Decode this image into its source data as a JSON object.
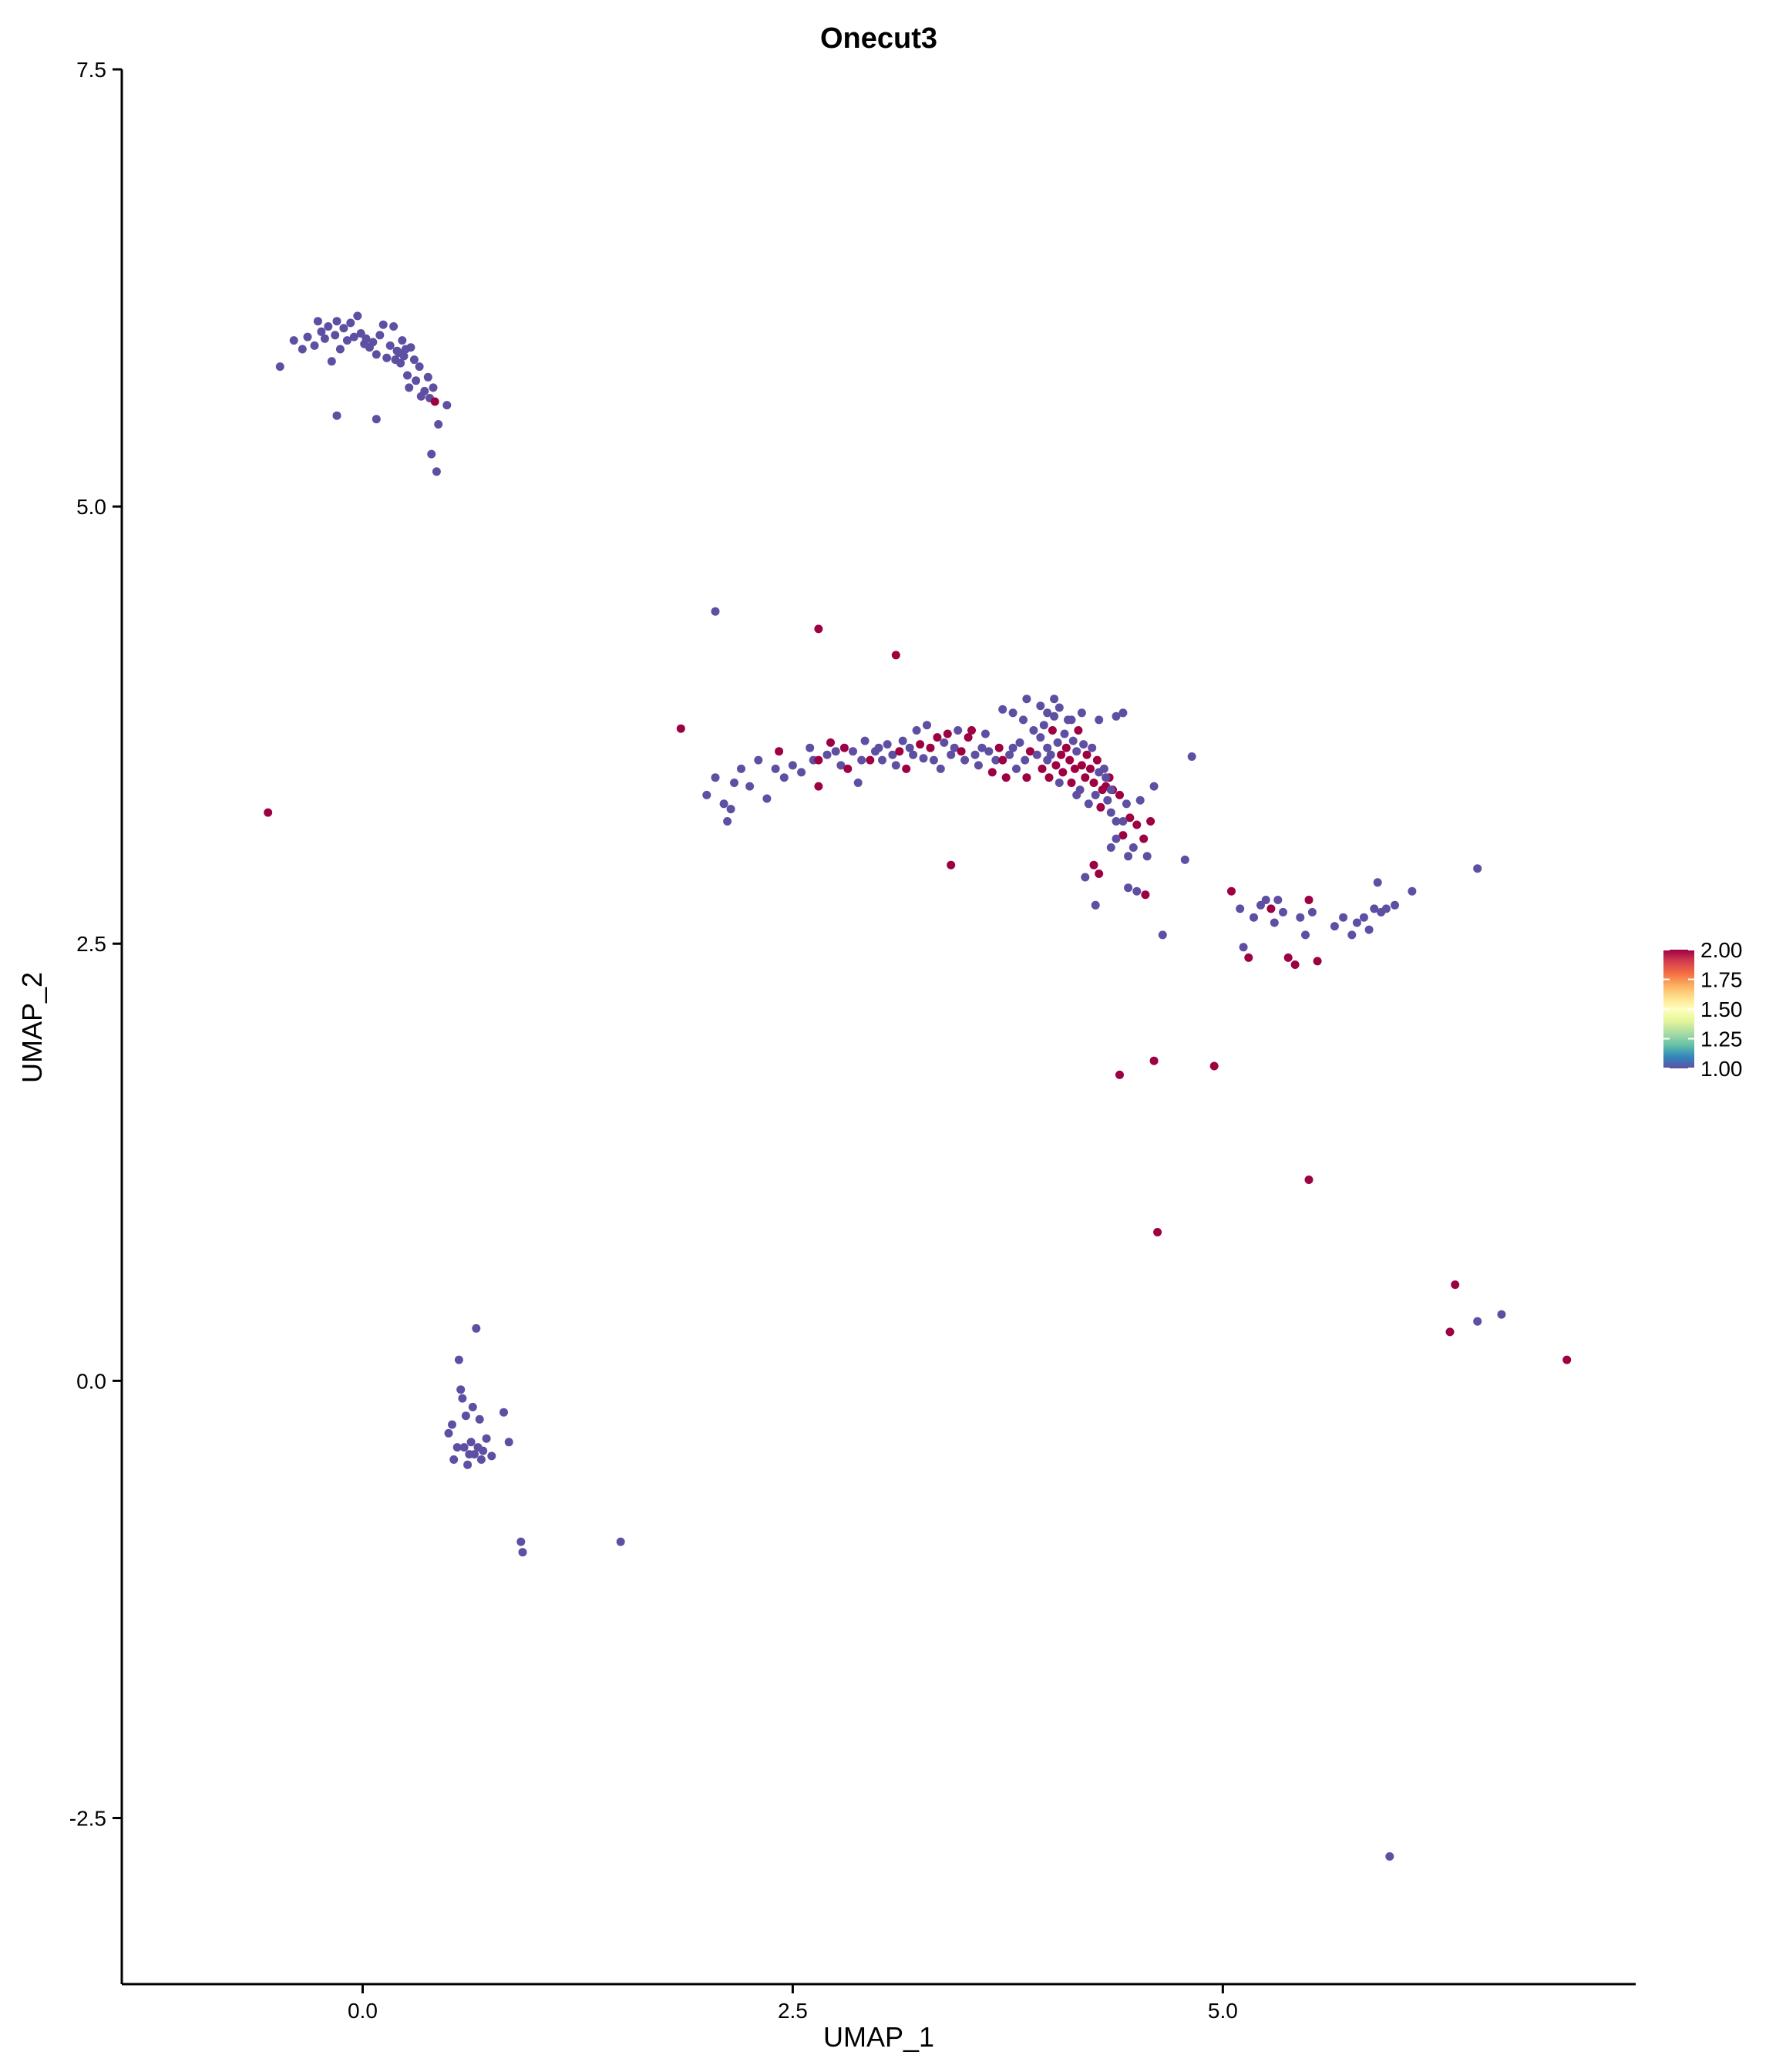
{
  "chart_data": {
    "type": "scatter",
    "title": "Onecut3",
    "xlabel": "UMAP_1",
    "ylabel": "UMAP_2",
    "xlim": [
      -1.4,
      7.4
    ],
    "ylim": [
      -3.45,
      7.5
    ],
    "x_ticks": [
      0.0,
      2.5,
      5.0
    ],
    "x_tick_labels": [
      "0.0",
      "2.5",
      "5.0"
    ],
    "y_ticks": [
      -2.5,
      0.0,
      2.5,
      5.0,
      7.5
    ],
    "y_tick_labels": [
      "-2.5",
      "0.0",
      "2.5",
      "5.0",
      "7.5"
    ],
    "grid": false,
    "legend": {
      "placement": "right",
      "type": "colorbar",
      "range": [
        1.0,
        2.0
      ],
      "ticks": [
        1.0,
        1.25,
        1.5,
        1.75,
        2.0
      ],
      "tick_labels": [
        "1.00",
        "1.25",
        "1.50",
        "1.75",
        "2.00"
      ],
      "colors": [
        "#5e4fa2",
        "#3288bd",
        "#66c2a5",
        "#abdda4",
        "#e6f598",
        "#ffffbf",
        "#fee08b",
        "#fdae61",
        "#f46d43",
        "#d53e4f",
        "#9e0142"
      ]
    },
    "points": [
      [
        -0.48,
        5.8,
        1
      ],
      [
        -0.4,
        5.95,
        1
      ],
      [
        -0.35,
        5.9,
        1
      ],
      [
        -0.32,
        5.97,
        1
      ],
      [
        -0.28,
        5.92,
        1
      ],
      [
        -0.26,
        6.06,
        1
      ],
      [
        -0.24,
        6.0,
        1
      ],
      [
        -0.22,
        5.96,
        1
      ],
      [
        -0.2,
        6.03,
        1
      ],
      [
        -0.18,
        5.83,
        1
      ],
      [
        -0.16,
        5.98,
        1
      ],
      [
        -0.15,
        6.06,
        1
      ],
      [
        -0.13,
        5.9,
        1
      ],
      [
        -0.11,
        6.02,
        1
      ],
      [
        -0.09,
        5.95,
        1
      ],
      [
        -0.07,
        6.05,
        1
      ],
      [
        -0.05,
        5.97,
        1
      ],
      [
        -0.03,
        6.09,
        1
      ],
      [
        -0.01,
        5.99,
        1
      ],
      [
        0.01,
        5.93,
        1
      ],
      [
        0.02,
        5.96,
        1
      ],
      [
        0.04,
        5.91,
        1
      ],
      [
        0.06,
        5.94,
        1
      ],
      [
        0.08,
        5.87,
        1
      ],
      [
        0.1,
        5.98,
        1
      ],
      [
        0.12,
        6.04,
        1
      ],
      [
        0.14,
        5.85,
        1
      ],
      [
        0.16,
        5.92,
        1
      ],
      [
        0.18,
        6.03,
        1
      ],
      [
        0.19,
        5.84,
        1
      ],
      [
        0.2,
        5.89,
        1
      ],
      [
        0.21,
        5.88,
        1
      ],
      [
        0.22,
        5.82,
        1
      ],
      [
        0.23,
        5.95,
        1
      ],
      [
        0.24,
        5.86,
        1
      ],
      [
        0.25,
        5.9,
        1
      ],
      [
        0.26,
        5.75,
        1
      ],
      [
        0.27,
        5.68,
        1
      ],
      [
        0.28,
        5.91,
        1
      ],
      [
        0.3,
        5.84,
        1
      ],
      [
        0.31,
        5.72,
        1
      ],
      [
        0.33,
        5.8,
        1
      ],
      [
        0.34,
        5.63,
        1
      ],
      [
        0.36,
        5.66,
        1
      ],
      [
        0.38,
        5.74,
        1
      ],
      [
        0.39,
        5.62,
        1
      ],
      [
        0.41,
        5.68,
        1
      ],
      [
        0.42,
        5.6,
        2
      ],
      [
        0.44,
        5.47,
        1
      ],
      [
        0.49,
        5.58,
        1
      ],
      [
        -0.15,
        5.52,
        1
      ],
      [
        0.08,
        5.5,
        1
      ],
      [
        0.4,
        5.3,
        1
      ],
      [
        0.43,
        5.2,
        1
      ],
      [
        -0.55,
        3.25,
        2
      ],
      [
        0.5,
        -0.3,
        1
      ],
      [
        0.52,
        -0.25,
        1
      ],
      [
        0.53,
        -0.45,
        1
      ],
      [
        0.55,
        -0.38,
        1
      ],
      [
        0.56,
        0.12,
        1
      ],
      [
        0.57,
        -0.05,
        1
      ],
      [
        0.58,
        -0.1,
        1
      ],
      [
        0.59,
        -0.38,
        1
      ],
      [
        0.6,
        -0.2,
        1
      ],
      [
        0.61,
        -0.48,
        1
      ],
      [
        0.62,
        -0.42,
        1
      ],
      [
        0.63,
        -0.35,
        1
      ],
      [
        0.64,
        -0.15,
        1
      ],
      [
        0.65,
        -0.42,
        1
      ],
      [
        0.66,
        0.3,
        1
      ],
      [
        0.67,
        -0.38,
        1
      ],
      [
        0.68,
        -0.22,
        1
      ],
      [
        0.69,
        -0.45,
        1
      ],
      [
        0.7,
        -0.4,
        1
      ],
      [
        0.72,
        -0.33,
        1
      ],
      [
        0.75,
        -0.43,
        1
      ],
      [
        0.82,
        -0.18,
        1
      ],
      [
        0.85,
        -0.35,
        1
      ],
      [
        0.92,
        -0.92,
        1
      ],
      [
        0.93,
        -0.98,
        1
      ],
      [
        1.5,
        -0.92,
        1
      ],
      [
        2.05,
        4.4,
        1
      ],
      [
        1.85,
        3.73,
        2
      ],
      [
        2.0,
        3.35,
        1
      ],
      [
        2.05,
        3.45,
        1
      ],
      [
        2.1,
        3.3,
        1
      ],
      [
        2.12,
        3.2,
        1
      ],
      [
        2.14,
        3.27,
        1
      ],
      [
        2.16,
        3.42,
        1
      ],
      [
        2.2,
        3.5,
        1
      ],
      [
        2.25,
        3.4,
        1
      ],
      [
        2.3,
        3.55,
        1
      ],
      [
        2.35,
        3.33,
        1
      ],
      [
        2.4,
        3.5,
        1
      ],
      [
        2.42,
        3.6,
        2
      ],
      [
        2.45,
        3.45,
        1
      ],
      [
        2.5,
        3.52,
        1
      ],
      [
        2.55,
        3.48,
        1
      ],
      [
        2.6,
        3.62,
        1
      ],
      [
        2.62,
        3.55,
        1
      ],
      [
        2.65,
        3.55,
        2
      ],
      [
        2.7,
        3.58,
        1
      ],
      [
        2.72,
        3.65,
        2
      ],
      [
        2.75,
        3.6,
        1
      ],
      [
        2.78,
        3.52,
        1
      ],
      [
        2.8,
        3.62,
        2
      ],
      [
        2.82,
        3.5,
        2
      ],
      [
        2.65,
        3.4,
        2
      ],
      [
        2.85,
        3.6,
        1
      ],
      [
        2.88,
        3.42,
        1
      ],
      [
        2.9,
        3.55,
        1
      ],
      [
        2.92,
        3.66,
        1
      ],
      [
        2.95,
        3.55,
        2
      ],
      [
        2.98,
        3.6,
        1
      ],
      [
        3.0,
        3.62,
        1
      ],
      [
        3.02,
        3.55,
        1
      ],
      [
        3.05,
        3.64,
        1
      ],
      [
        3.08,
        3.58,
        1
      ],
      [
        3.1,
        3.52,
        1
      ],
      [
        3.12,
        3.6,
        2
      ],
      [
        3.14,
        3.66,
        1
      ],
      [
        3.16,
        3.5,
        2
      ],
      [
        3.18,
        3.62,
        1
      ],
      [
        3.2,
        3.58,
        1
      ],
      [
        3.22,
        3.72,
        1
      ],
      [
        3.24,
        3.64,
        2
      ],
      [
        3.26,
        3.56,
        1
      ],
      [
        3.28,
        3.75,
        1
      ],
      [
        3.3,
        3.62,
        2
      ],
      [
        3.32,
        3.55,
        1
      ],
      [
        3.34,
        3.68,
        2
      ],
      [
        3.36,
        3.5,
        1
      ],
      [
        3.38,
        3.65,
        1
      ],
      [
        3.4,
        3.7,
        2
      ],
      [
        3.42,
        3.58,
        1
      ],
      [
        3.44,
        3.62,
        1
      ],
      [
        3.46,
        3.72,
        1
      ],
      [
        3.48,
        3.6,
        2
      ],
      [
        3.5,
        3.55,
        1
      ],
      [
        3.52,
        3.68,
        2
      ],
      [
        3.54,
        3.72,
        2
      ],
      [
        3.56,
        3.58,
        1
      ],
      [
        3.58,
        3.52,
        1
      ],
      [
        3.6,
        3.62,
        1
      ],
      [
        3.62,
        3.7,
        1
      ],
      [
        3.64,
        3.6,
        1
      ],
      [
        3.66,
        3.48,
        2
      ],
      [
        3.68,
        3.55,
        1
      ],
      [
        3.7,
        3.62,
        2
      ],
      [
        3.72,
        3.55,
        2
      ],
      [
        3.74,
        3.45,
        2
      ],
      [
        3.76,
        3.58,
        1
      ],
      [
        3.78,
        3.62,
        1
      ],
      [
        3.8,
        3.5,
        1
      ],
      [
        3.82,
        3.65,
        1
      ],
      [
        3.84,
        3.78,
        1
      ],
      [
        3.85,
        3.55,
        1
      ],
      [
        3.86,
        3.45,
        2
      ],
      [
        3.88,
        3.6,
        2
      ],
      [
        3.9,
        3.72,
        1
      ],
      [
        3.92,
        3.58,
        1
      ],
      [
        3.94,
        3.68,
        1
      ],
      [
        3.95,
        3.5,
        2
      ],
      [
        3.96,
        3.75,
        1
      ],
      [
        3.98,
        3.62,
        1
      ],
      [
        3.99,
        3.45,
        2
      ],
      [
        4.0,
        3.58,
        1
      ],
      [
        4.01,
        3.72,
        2
      ],
      [
        4.02,
        3.8,
        1
      ],
      [
        4.03,
        3.52,
        2
      ],
      [
        4.04,
        3.65,
        1
      ],
      [
        4.05,
        3.85,
        1
      ],
      [
        4.06,
        3.58,
        2
      ],
      [
        4.07,
        3.48,
        2
      ],
      [
        4.08,
        3.7,
        1
      ],
      [
        4.09,
        3.62,
        2
      ],
      [
        4.1,
        3.78,
        1
      ],
      [
        4.11,
        3.55,
        2
      ],
      [
        4.12,
        3.42,
        2
      ],
      [
        4.13,
        3.66,
        1
      ],
      [
        4.14,
        3.5,
        2
      ],
      [
        4.15,
        3.6,
        1
      ],
      [
        4.16,
        3.72,
        2
      ],
      [
        4.17,
        3.38,
        1
      ],
      [
        4.18,
        3.52,
        2
      ],
      [
        4.19,
        3.64,
        1
      ],
      [
        4.2,
        3.45,
        2
      ],
      [
        4.21,
        3.58,
        2
      ],
      [
        4.22,
        3.3,
        1
      ],
      [
        4.23,
        3.5,
        2
      ],
      [
        4.24,
        3.62,
        1
      ],
      [
        4.25,
        3.42,
        2
      ],
      [
        4.26,
        3.35,
        1
      ],
      [
        4.27,
        3.55,
        2
      ],
      [
        4.28,
        3.48,
        1
      ],
      [
        4.29,
        3.28,
        2
      ],
      [
        4.3,
        3.38,
        2
      ],
      [
        4.31,
        3.5,
        1
      ],
      [
        4.32,
        3.4,
        2
      ],
      [
        4.33,
        3.32,
        1
      ],
      [
        4.34,
        3.45,
        2
      ],
      [
        4.35,
        3.25,
        1
      ],
      [
        4.36,
        3.38,
        2
      ],
      [
        4.38,
        3.2,
        1
      ],
      [
        4.4,
        3.35,
        2
      ],
      [
        4.42,
        3.12,
        2
      ],
      [
        4.44,
        3.3,
        1
      ],
      [
        4.46,
        3.22,
        2
      ],
      [
        4.48,
        3.05,
        1
      ],
      [
        4.5,
        3.18,
        2
      ],
      [
        4.52,
        3.32,
        1
      ],
      [
        4.54,
        3.1,
        2
      ],
      [
        4.56,
        3.0,
        1
      ],
      [
        4.58,
        3.2,
        2
      ],
      [
        4.6,
        3.4,
        1
      ],
      [
        3.72,
        3.84,
        1
      ],
      [
        3.78,
        3.82,
        1
      ],
      [
        3.86,
        3.9,
        1
      ],
      [
        3.94,
        3.86,
        1
      ],
      [
        3.98,
        3.82,
        1
      ],
      [
        4.02,
        3.9,
        1
      ],
      [
        4.12,
        3.78,
        1
      ],
      [
        4.18,
        3.82,
        1
      ],
      [
        4.28,
        3.78,
        1
      ],
      [
        4.38,
        3.8,
        1
      ],
      [
        4.42,
        3.82,
        1
      ],
      [
        3.98,
        3.55,
        1
      ],
      [
        4.05,
        3.42,
        1
      ],
      [
        4.15,
        3.35,
        1
      ],
      [
        4.32,
        3.45,
        1
      ],
      [
        4.35,
        3.38,
        1
      ],
      [
        4.38,
        3.1,
        1
      ],
      [
        4.42,
        3.2,
        1
      ],
      [
        4.45,
        3.0,
        1
      ],
      [
        4.25,
        2.95,
        2
      ],
      [
        4.28,
        2.9,
        2
      ],
      [
        4.26,
        2.72,
        1
      ],
      [
        4.2,
        2.88,
        1
      ],
      [
        4.35,
        3.05,
        1
      ],
      [
        4.45,
        2.82,
        1
      ],
      [
        4.5,
        2.8,
        1
      ],
      [
        4.55,
        2.78,
        2
      ],
      [
        4.65,
        2.55,
        1
      ],
      [
        4.78,
        2.98,
        1
      ],
      [
        4.82,
        3.57,
        1
      ],
      [
        2.65,
        4.3,
        2
      ],
      [
        3.1,
        4.15,
        2
      ],
      [
        3.42,
        2.95,
        2
      ],
      [
        5.05,
        2.8,
        2
      ],
      [
        5.1,
        2.7,
        1
      ],
      [
        5.12,
        2.48,
        1
      ],
      [
        5.15,
        2.42,
        2
      ],
      [
        5.18,
        2.65,
        1
      ],
      [
        5.22,
        2.72,
        1
      ],
      [
        5.25,
        2.75,
        1
      ],
      [
        5.28,
        2.7,
        2
      ],
      [
        5.3,
        2.62,
        1
      ],
      [
        5.32,
        2.75,
        1
      ],
      [
        5.35,
        2.68,
        1
      ],
      [
        5.38,
        2.42,
        2
      ],
      [
        5.42,
        2.38,
        2
      ],
      [
        5.45,
        2.65,
        1
      ],
      [
        5.48,
        2.55,
        1
      ],
      [
        5.5,
        2.75,
        2
      ],
      [
        5.52,
        2.68,
        1
      ],
      [
        5.55,
        2.4,
        2
      ],
      [
        5.65,
        2.6,
        1
      ],
      [
        5.7,
        2.65,
        1
      ],
      [
        5.75,
        2.55,
        1
      ],
      [
        5.78,
        2.62,
        1
      ],
      [
        5.82,
        2.65,
        1
      ],
      [
        5.85,
        2.58,
        1
      ],
      [
        5.88,
        2.7,
        1
      ],
      [
        5.9,
        2.85,
        1
      ],
      [
        5.92,
        2.68,
        1
      ],
      [
        5.95,
        2.7,
        1
      ],
      [
        6.0,
        2.72,
        1
      ],
      [
        6.1,
        2.8,
        1
      ],
      [
        6.48,
        2.93,
        1
      ],
      [
        4.4,
        1.75,
        2
      ],
      [
        4.6,
        1.83,
        2
      ],
      [
        4.95,
        1.8,
        2
      ],
      [
        5.5,
        1.15,
        2
      ],
      [
        4.62,
        0.85,
        2
      ],
      [
        6.32,
        0.28,
        2
      ],
      [
        6.35,
        0.55,
        2
      ],
      [
        6.48,
        0.34,
        1
      ],
      [
        6.62,
        0.38,
        1
      ],
      [
        7.0,
        0.12,
        2
      ],
      [
        5.97,
        -2.72,
        1
      ]
    ]
  }
}
